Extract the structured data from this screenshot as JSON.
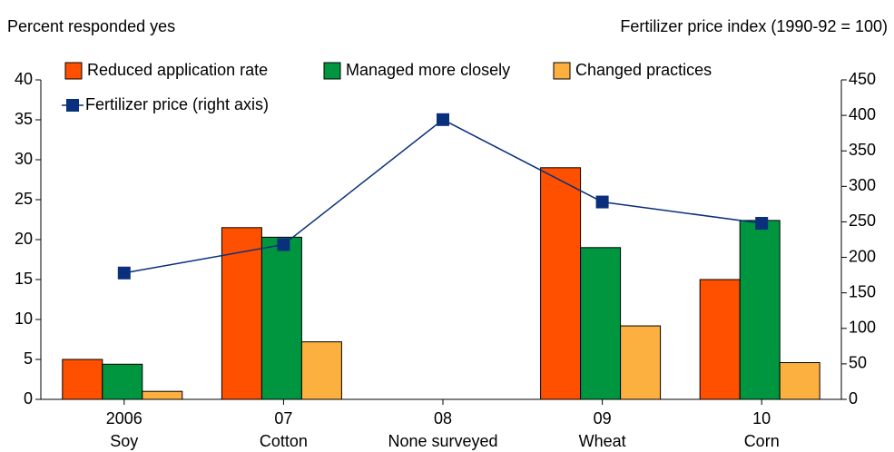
{
  "chart_data": {
    "type": "bar",
    "y_label": "Percent responded yes",
    "y2_label": "Fertilizer price index (1990-92 = 100)",
    "categories": [
      "2006",
      "07",
      "08",
      "09",
      "10"
    ],
    "subcategories": [
      "Soy",
      "Cotton",
      "None surveyed",
      "Wheat",
      "Corn"
    ],
    "series": [
      {
        "name": "Reduced application rate",
        "color": "#ff5000",
        "values": [
          5,
          21.5,
          null,
          29,
          15
        ]
      },
      {
        "name": "Managed more closely",
        "color": "#009640",
        "values": [
          4.4,
          20.3,
          null,
          19,
          22.4
        ]
      },
      {
        "name": "Changed practices",
        "color": "#fbb040",
        "values": [
          1,
          7.2,
          null,
          9.2,
          4.6
        ]
      },
      {
        "name": "Fertilizer price (right axis)",
        "color": "#0a2f7c",
        "type": "line",
        "axis": "y2",
        "values": [
          178,
          218,
          394,
          278,
          248
        ]
      }
    ],
    "ylim": [
      0,
      40
    ],
    "yticks": [
      0,
      5,
      10,
      15,
      20,
      25,
      30,
      35,
      40
    ],
    "y2lim": [
      0,
      450
    ],
    "y2ticks": [
      0,
      50,
      100,
      150,
      200,
      250,
      300,
      350,
      400,
      450
    ]
  }
}
